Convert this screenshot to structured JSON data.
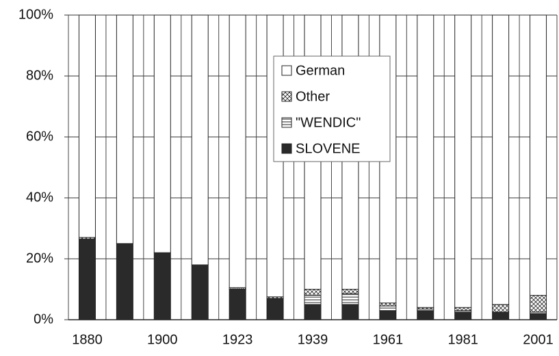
{
  "chart_data": {
    "type": "stacked-bar",
    "categories": [
      "1880",
      null,
      "1900",
      null,
      "1923",
      null,
      "1939",
      null,
      "1961",
      null,
      "1981",
      null,
      "2001"
    ],
    "series": [
      {
        "name": "SLOVENE",
        "color": "#2a2a2a",
        "hatch": "solid",
        "values": [
          26.5,
          25,
          22,
          18,
          10,
          7,
          5,
          5,
          3,
          3,
          2.5,
          2.5,
          2
        ]
      },
      {
        "name": "\"WENDIC\"",
        "color": "#ffffff",
        "hatch": "lines",
        "values": [
          0,
          0,
          0,
          0,
          0,
          0,
          3,
          3.5,
          1.5,
          0.5,
          0.5,
          0,
          0.5
        ]
      },
      {
        "name": "Other",
        "color": "#ffffff",
        "hatch": "cross",
        "values": [
          0.5,
          0,
          0,
          0,
          0.5,
          0.5,
          2,
          1.5,
          1,
          0.5,
          1,
          2.5,
          5.5
        ]
      },
      {
        "name": "German",
        "color": "#ffffff",
        "hatch": "solid",
        "values": [
          73,
          75,
          78,
          82,
          89.5,
          92.5,
          90,
          90,
          94.5,
          96,
          96,
          95,
          92
        ]
      }
    ],
    "ylim": [
      0,
      100
    ],
    "yticks": [
      {
        "value": 0,
        "label": "0%"
      },
      {
        "value": 20,
        "label": "20%"
      },
      {
        "value": 40,
        "label": "40%"
      },
      {
        "value": 60,
        "label": "60%"
      },
      {
        "value": 80,
        "label": "80%"
      },
      {
        "value": 100,
        "label": "100%"
      }
    ],
    "grid": true,
    "legend": "top-center"
  }
}
